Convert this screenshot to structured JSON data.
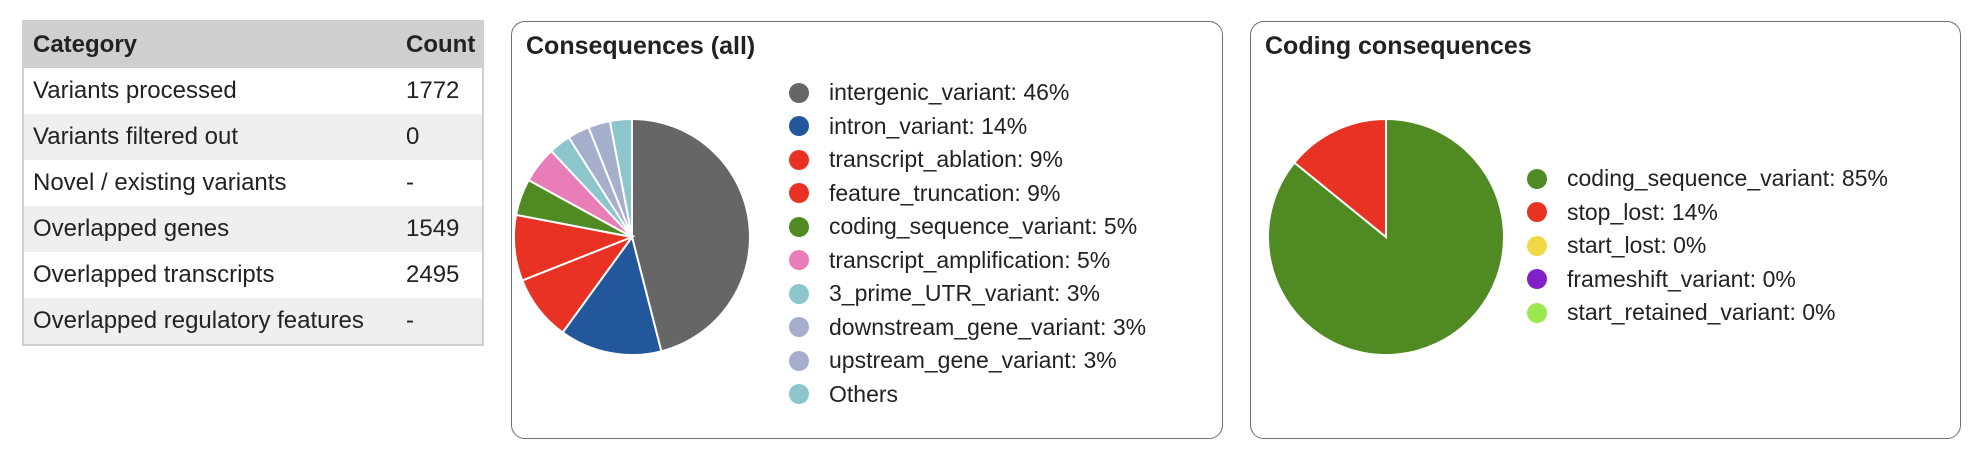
{
  "summary_table": {
    "headers": {
      "category": "Category",
      "count": "Count"
    },
    "rows": [
      {
        "category": "Variants processed",
        "count": "1772"
      },
      {
        "category": "Variants filtered out",
        "count": "0"
      },
      {
        "category": "Novel / existing variants",
        "count": "-"
      },
      {
        "category": "Overlapped genes",
        "count": "1549"
      },
      {
        "category": "Overlapped transcripts",
        "count": "2495"
      },
      {
        "category": "Overlapped regulatory features",
        "count": "-"
      }
    ]
  },
  "chart_data": [
    {
      "type": "pie",
      "title": "Consequences (all)",
      "legend_position": "right",
      "slices": [
        {
          "label": "intergenic_variant",
          "legend": "intergenic_variant: 46%",
          "value": 46,
          "color": "#666666"
        },
        {
          "label": "intron_variant",
          "legend": "intron_variant: 14%",
          "value": 14,
          "color": "#23579b"
        },
        {
          "label": "transcript_ablation",
          "legend": "transcript_ablation: 9%",
          "value": 9,
          "color": "#e73224"
        },
        {
          "label": "feature_truncation",
          "legend": "feature_truncation: 9%",
          "value": 9,
          "color": "#e73224"
        },
        {
          "label": "coding_sequence_variant",
          "legend": "coding_sequence_variant: 5%",
          "value": 5,
          "color": "#4f8a23"
        },
        {
          "label": "transcript_amplification",
          "legend": "transcript_amplification: 5%",
          "value": 5,
          "color": "#e97db8"
        },
        {
          "label": "3_prime_UTR_variant",
          "legend": "3_prime_UTR_variant: 3%",
          "value": 3,
          "color": "#8cc5cc"
        },
        {
          "label": "downstream_gene_variant",
          "legend": "downstream_gene_variant: 3%",
          "value": 3,
          "color": "#a5aecb"
        },
        {
          "label": "upstream_gene_variant",
          "legend": "upstream_gene_variant: 3%",
          "value": 3,
          "color": "#a5aecb"
        },
        {
          "label": "Others",
          "legend": "Others",
          "value": 3,
          "color": "#8cc5cc"
        }
      ]
    },
    {
      "type": "pie",
      "title": "Coding consequences",
      "legend_position": "right",
      "slices": [
        {
          "label": "coding_sequence_variant",
          "legend": "coding_sequence_variant: 85%",
          "value": 85,
          "color": "#4f8a23"
        },
        {
          "label": "stop_lost",
          "legend": "stop_lost: 14%",
          "value": 14,
          "color": "#e73224"
        },
        {
          "label": "start_lost",
          "legend": "start_lost: 0%",
          "value": 0,
          "color": "#f1d845"
        },
        {
          "label": "frameshift_variant",
          "legend": "frameshift_variant: 0%",
          "value": 0,
          "color": "#8021c8"
        },
        {
          "label": "start_retained_variant",
          "legend": "start_retained_variant: 0%",
          "value": 0,
          "color": "#9be84e"
        }
      ]
    }
  ]
}
